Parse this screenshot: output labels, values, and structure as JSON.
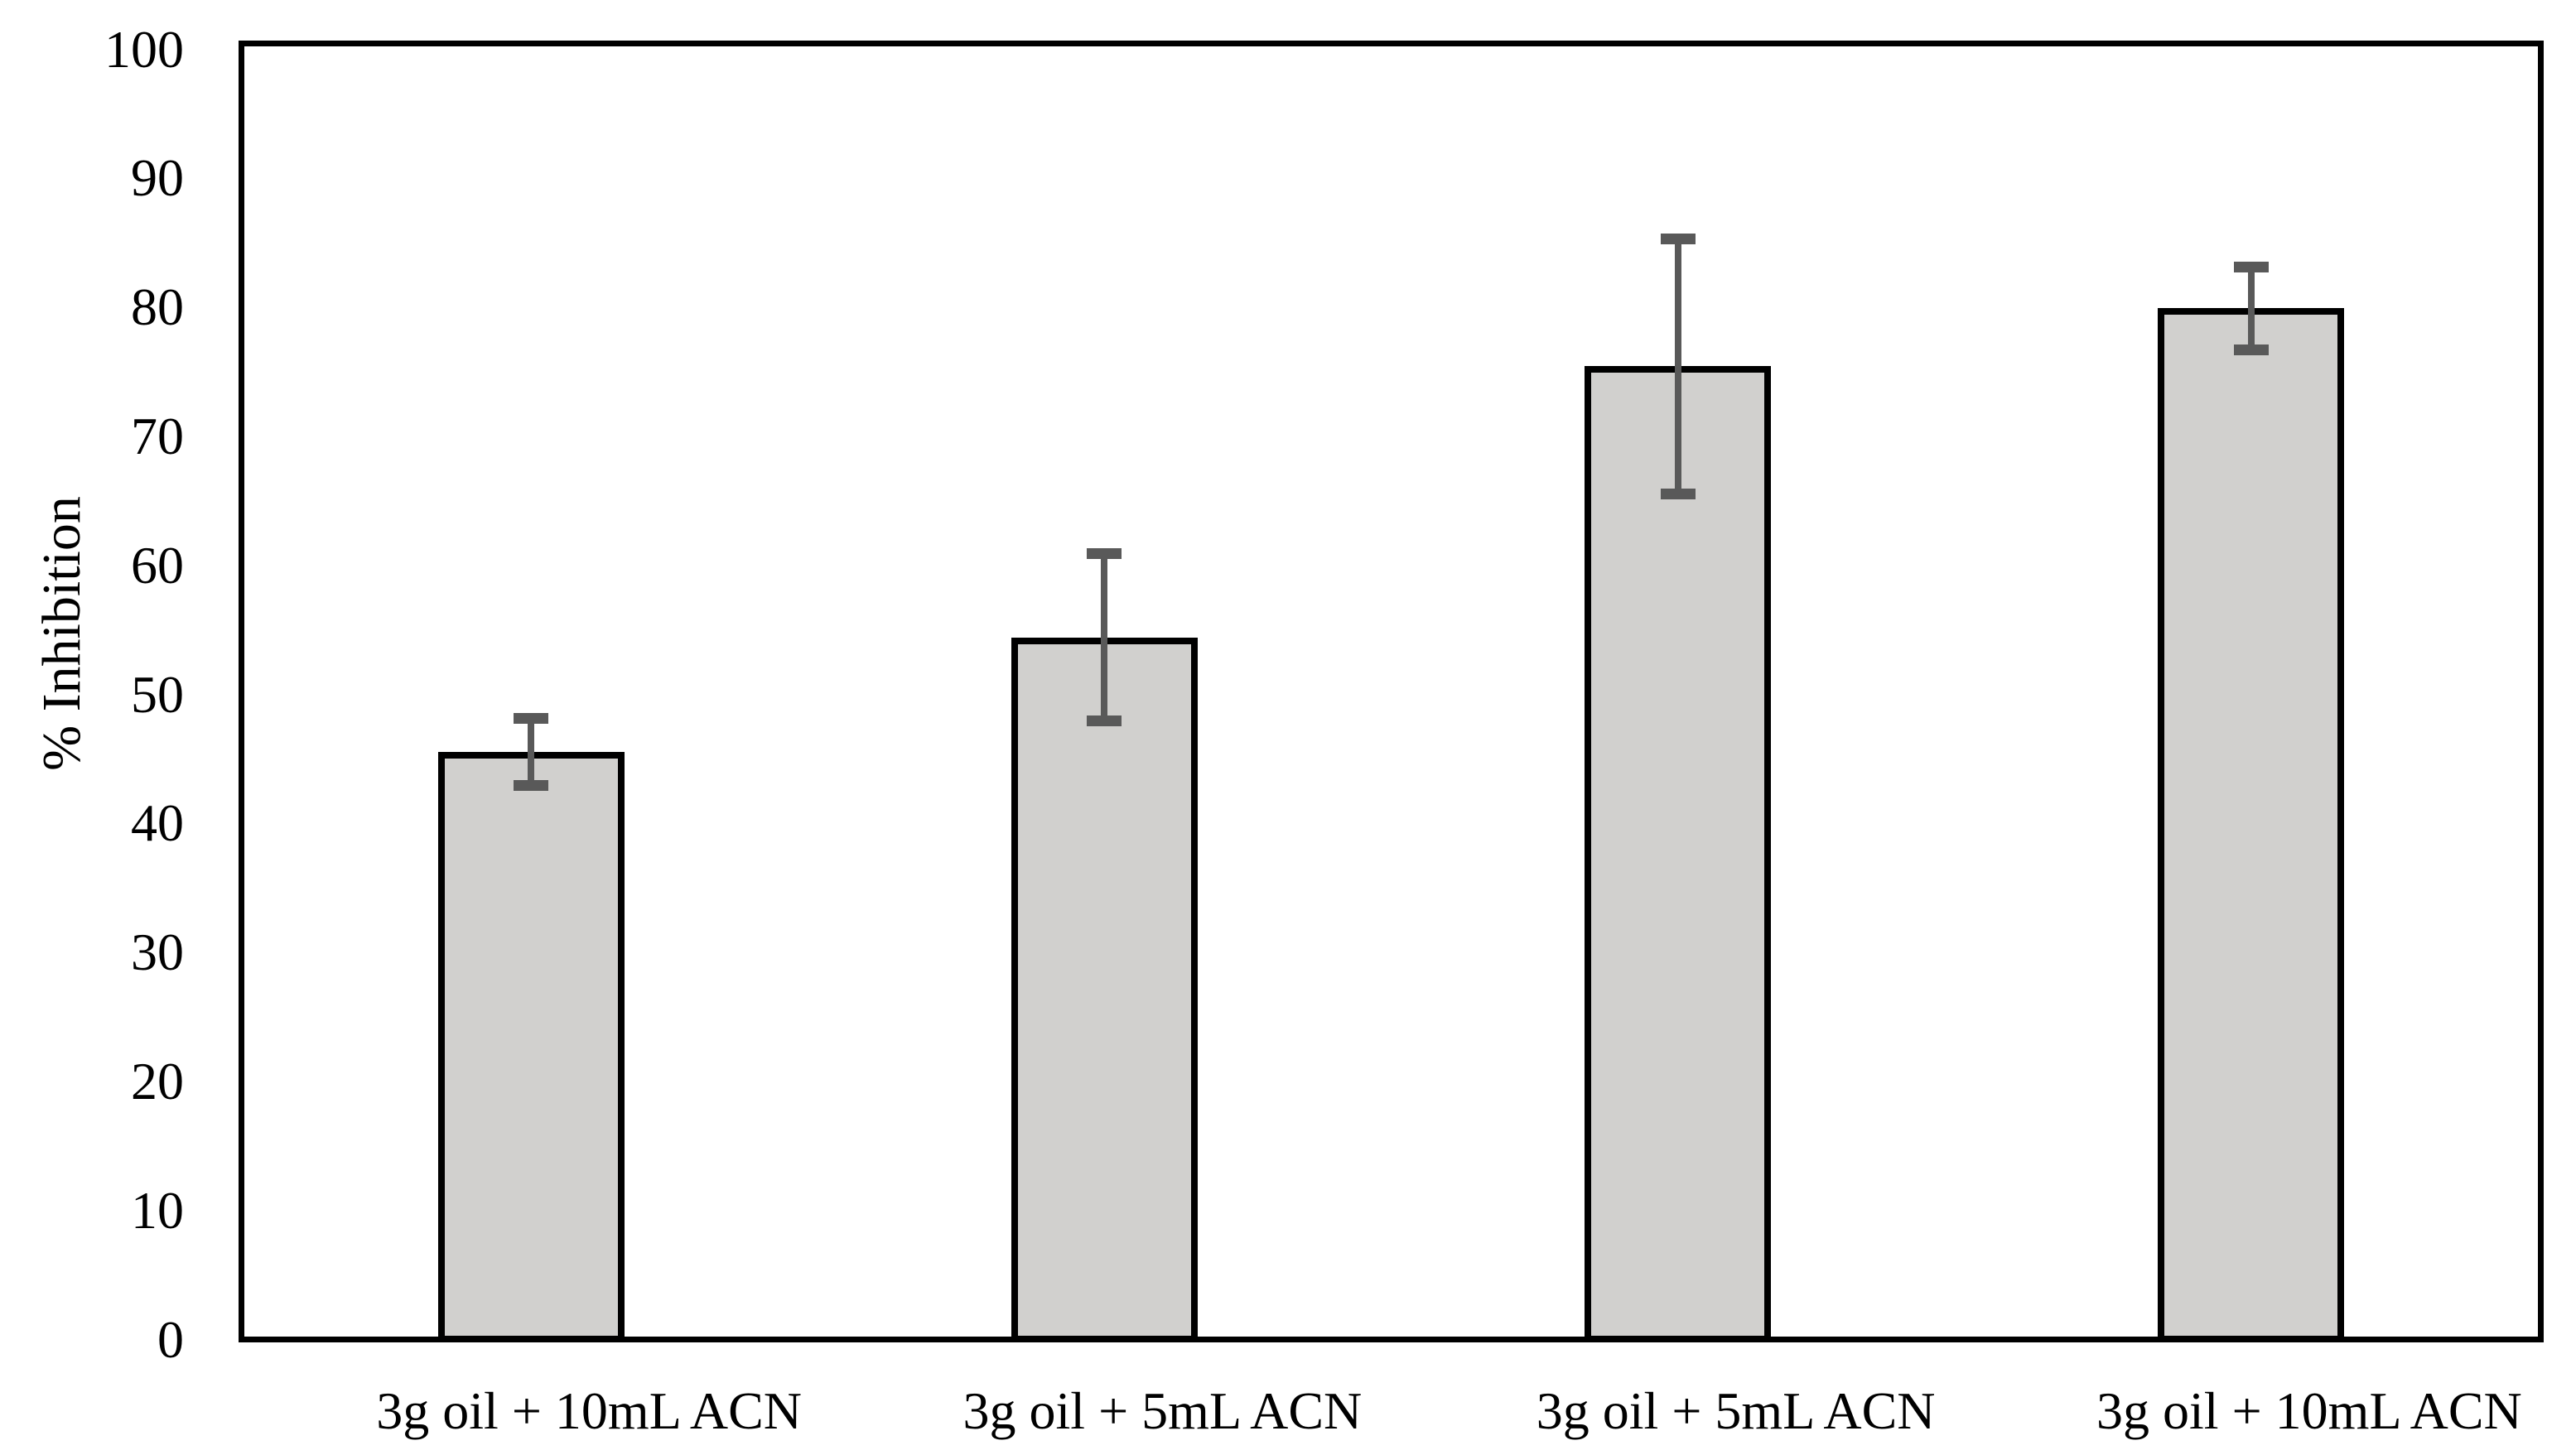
{
  "figure": {
    "background": "#ffffff",
    "y_axis_title": "% Inhibition"
  },
  "chart_data": {
    "type": "bar",
    "title": "",
    "xlabel": "",
    "ylabel": "% Inhibition",
    "ylim": [
      0,
      100
    ],
    "yticks": [
      0,
      10,
      20,
      30,
      40,
      50,
      60,
      70,
      80,
      90,
      100
    ],
    "grid": false,
    "legend_position": "none",
    "categories": [
      "3g oil + 10mL ACN",
      "3g oil + 5mL ACN",
      "3g oil + 5mL ACN",
      "3g oil + 10mL ACN"
    ],
    "series": [
      {
        "name": "% Inhibition",
        "values": [
          45.3,
          54.2,
          75.2,
          79.7
        ],
        "error_bars": [
          2.6,
          6.5,
          9.9,
          3.2
        ]
      }
    ],
    "colors": {
      "bar_fill": "#d1d0ce",
      "bar_border": "#000000",
      "error_bar": "#595959",
      "axis": "#000000",
      "text": "#000000"
    }
  }
}
